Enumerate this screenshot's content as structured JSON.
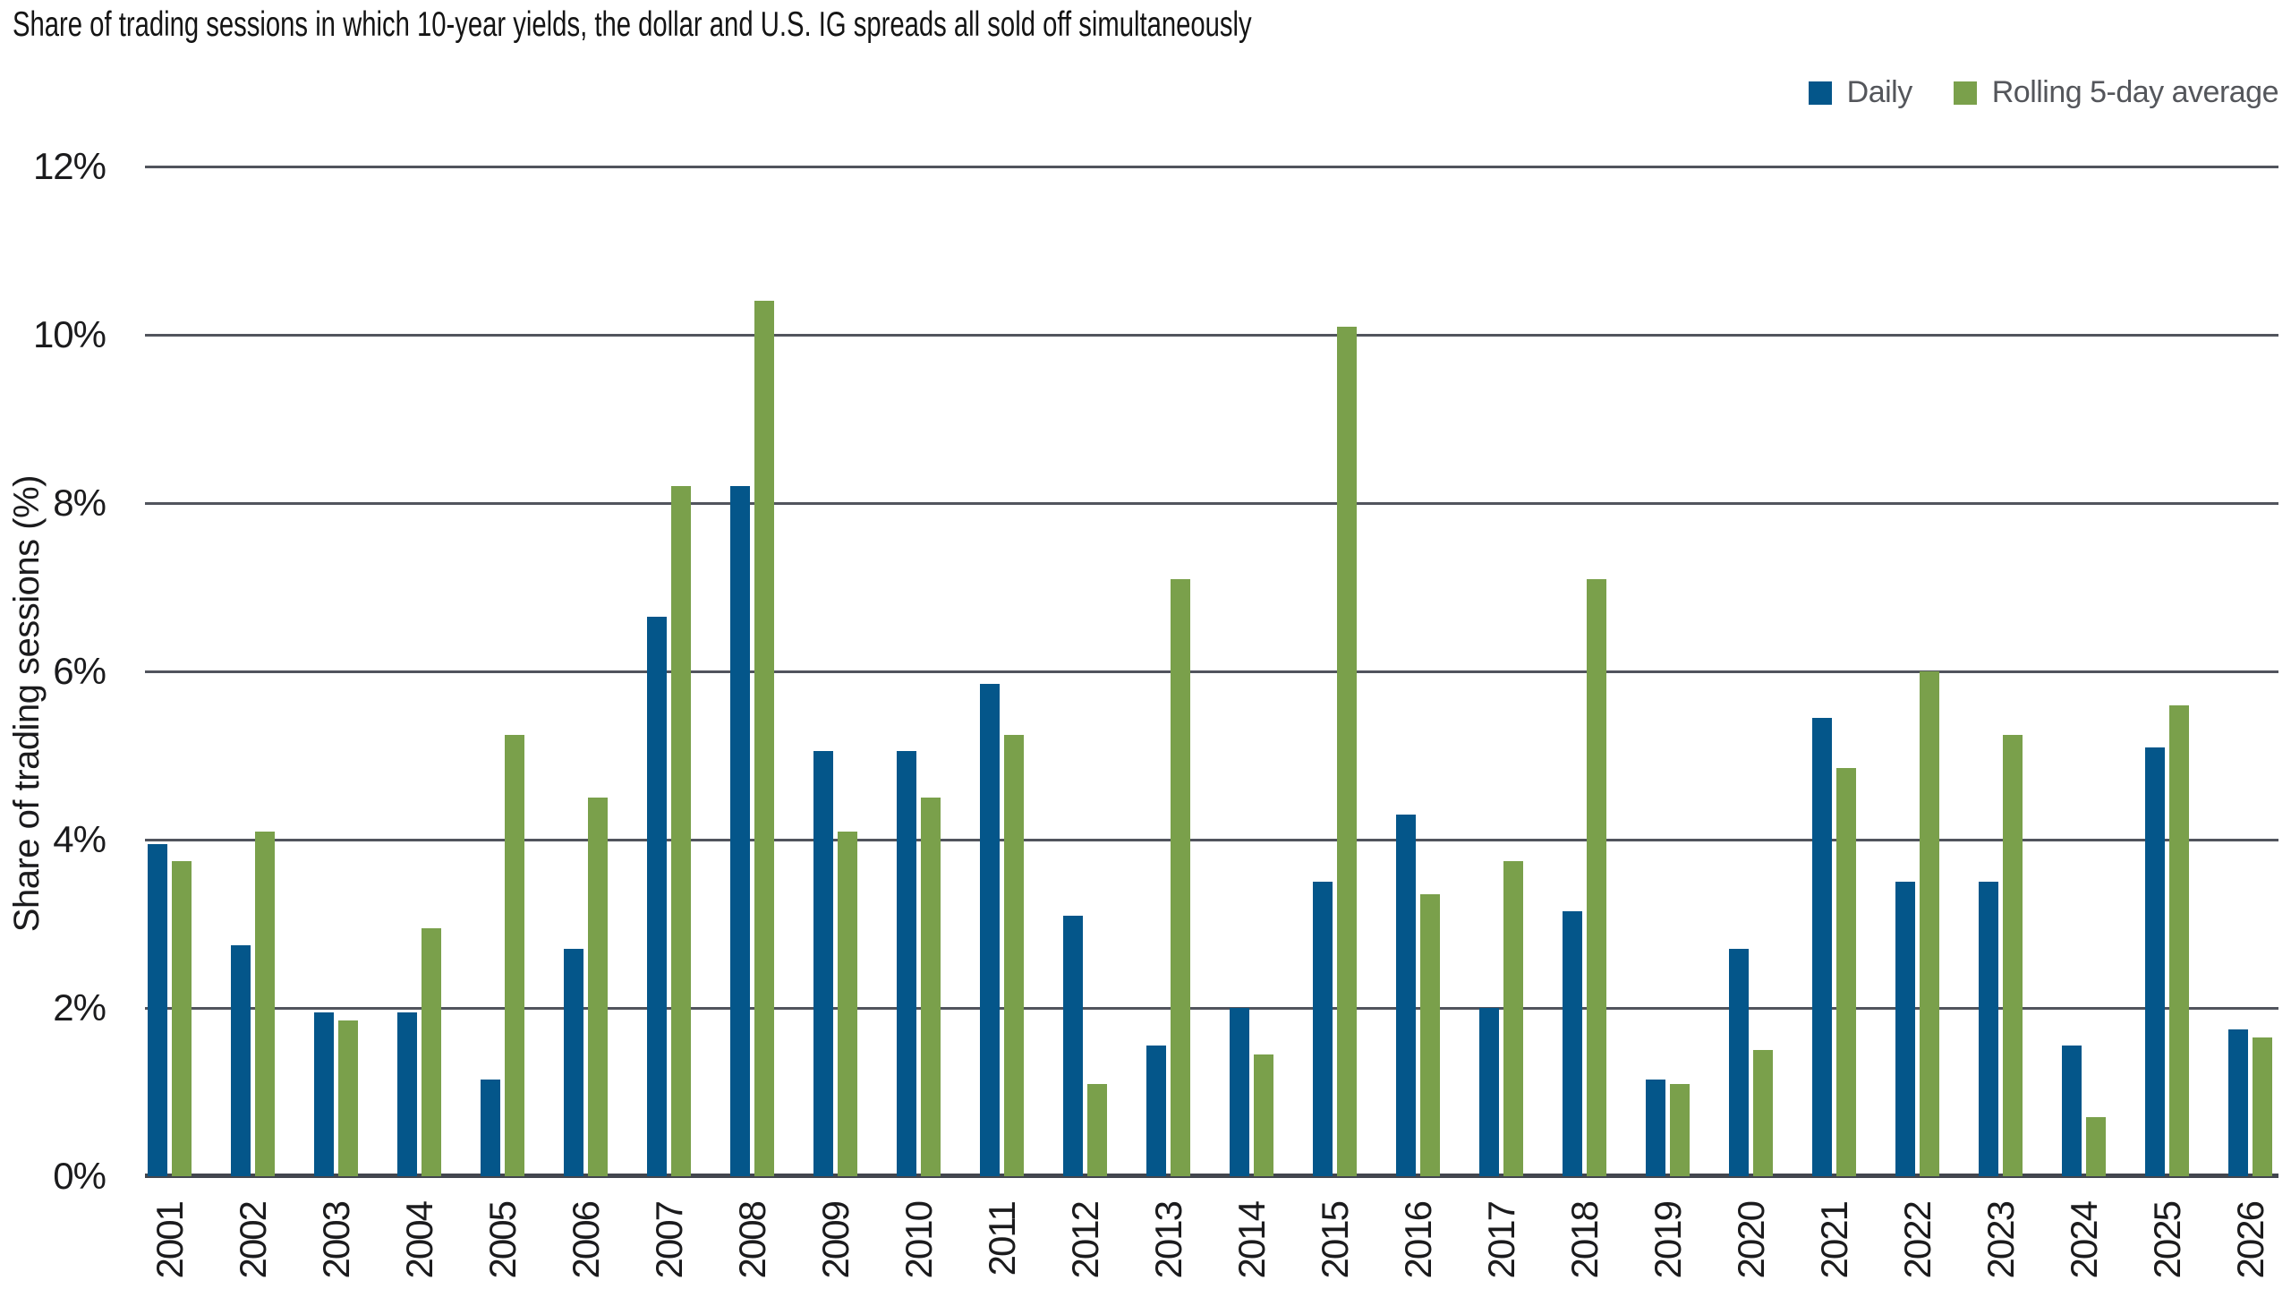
{
  "title": "Share of trading sessions in which 10-year yields, the dollar and U.S. IG spreads all sold off simultaneously",
  "colors": {
    "daily": "#04568A",
    "rolling": "#7AA04B",
    "gridline": "#51545D",
    "axis_line": "#42464E",
    "text": "#1B1B1D",
    "legend_text": "#54565B"
  },
  "chart_data": {
    "type": "bar",
    "title": "Share of trading sessions in which 10-year yields, the dollar and U.S. IG spreads all sold off simultaneously",
    "xlabel": "",
    "ylabel": "Share of trading sessions (%)",
    "ylim": [
      0,
      12
    ],
    "grid": true,
    "legend_position": "top-right",
    "y_ticks": [
      {
        "value": 12,
        "label": "12%"
      },
      {
        "value": 10,
        "label": "10%"
      },
      {
        "value": 8,
        "label": "8%"
      },
      {
        "value": 6,
        "label": "6%"
      },
      {
        "value": 4,
        "label": "4%"
      },
      {
        "value": 2,
        "label": "2%"
      },
      {
        "value": 0,
        "label": "0%"
      }
    ],
    "categories": [
      "2001",
      "2002",
      "2003",
      "2004",
      "2005",
      "2006",
      "2007",
      "2008",
      "2009",
      "2010",
      "2011",
      "2012",
      "2013",
      "2014",
      "2015",
      "2016",
      "2017",
      "2018",
      "2019",
      "2020",
      "2021",
      "2022",
      "2023",
      "2024",
      "2025",
      "2026"
    ],
    "series": [
      {
        "name": "Daily",
        "color": "#04568A",
        "values": [
          3.95,
          2.75,
          1.95,
          1.95,
          1.15,
          2.7,
          6.65,
          8.2,
          5.05,
          5.05,
          5.85,
          3.1,
          1.55,
          2.0,
          3.5,
          4.3,
          2.0,
          3.15,
          1.15,
          2.7,
          5.45,
          3.5,
          3.5,
          1.55,
          5.1,
          1.75
        ]
      },
      {
        "name": "Rolling 5-day average",
        "color": "#7AA04B",
        "values": [
          3.75,
          4.1,
          1.85,
          2.95,
          5.25,
          4.5,
          8.2,
          10.4,
          4.1,
          4.5,
          5.25,
          1.1,
          7.1,
          1.45,
          10.1,
          3.35,
          3.75,
          7.1,
          1.1,
          1.5,
          4.85,
          6.0,
          5.25,
          0.7,
          5.6,
          1.65
        ]
      }
    ]
  }
}
